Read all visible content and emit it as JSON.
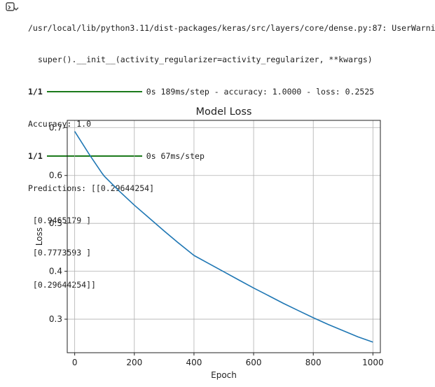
{
  "console": {
    "warning_line1": "/usr/local/lib/python3.11/dist-packages/keras/src/layers/core/dense.py:87: UserWarni",
    "warning_line2": "super().__init__(activity_regularizer=activity_regularizer, **kwargs)",
    "progress1": {
      "step": "1/1",
      "fraction": 1.0,
      "stats": "0s 189ms/step - accuracy: 1.0000 - loss: 0.2525"
    },
    "accuracy_line": "Accuracy: 1.0",
    "progress2": {
      "step": "1/1",
      "fraction": 1.0,
      "stats": "0s 67ms/step"
    },
    "predictions_lines": [
      "Predictions: [[0.29644254]",
      " [0.9465179 ]",
      " [0.7773593 ]",
      " [0.29644254]]"
    ]
  },
  "chart_data": {
    "type": "line",
    "title": "Model Loss",
    "xlabel": "Epoch",
    "ylabel": "Loss",
    "xlim": [
      -25,
      1025
    ],
    "ylim": [
      0.23,
      0.715
    ],
    "xticks": [
      0,
      200,
      400,
      600,
      800,
      1000
    ],
    "yticks": [
      0.3,
      0.4,
      0.5,
      0.6,
      0.7
    ],
    "grid": true,
    "series": [
      {
        "color": "#1f77b4",
        "x": [
          0,
          50,
          90,
          100,
          150,
          200,
          250,
          300,
          350,
          400,
          450,
          500,
          550,
          600,
          650,
          700,
          750,
          800,
          850,
          900,
          950,
          1000
        ],
        "y": [
          0.692,
          0.643,
          0.606,
          0.598,
          0.567,
          0.538,
          0.511,
          0.484,
          0.458,
          0.433,
          0.416,
          0.399,
          0.382,
          0.365,
          0.349,
          0.333,
          0.318,
          0.303,
          0.289,
          0.276,
          0.263,
          0.252
        ]
      }
    ]
  }
}
